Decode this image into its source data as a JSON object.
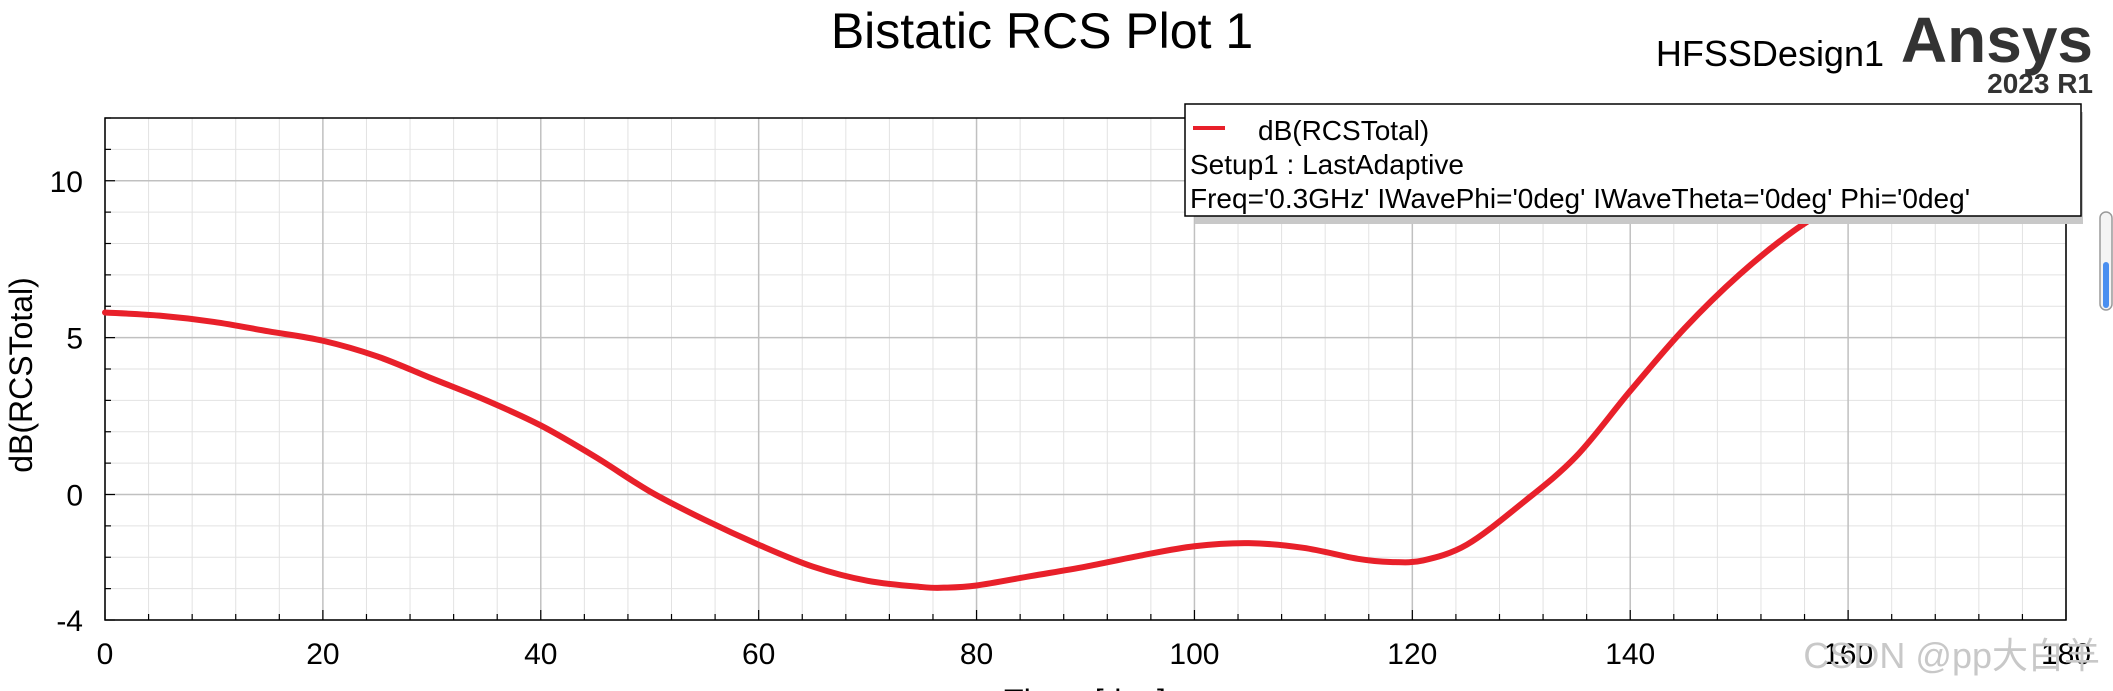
{
  "header": {
    "design_name": "HFSSDesign1",
    "brand": "Ansys",
    "version": "2023 R1"
  },
  "watermark": "CSDN @pp大白羊",
  "colors": {
    "series": "#e8202a",
    "grid_major": "#c0c0c0",
    "grid_minor": "#e2e2e2"
  },
  "chart_data": {
    "type": "line",
    "title": "Bistatic RCS Plot 1",
    "xlabel": "Theta [deg]",
    "ylabel": "dB(RCSTotal)",
    "xlim": [
      0,
      180
    ],
    "ylim": [
      -4,
      12
    ],
    "xticks": [
      "0",
      "20",
      "40",
      "60",
      "80",
      "100",
      "120",
      "140",
      "160",
      "180"
    ],
    "yticks": [
      "-4",
      "0",
      "5",
      "10"
    ],
    "grid": true,
    "legend": {
      "placement": "top-right",
      "entry": "dB(RCSTotal)",
      "lines": [
        "Setup1 : LastAdaptive",
        "Freq='0.3GHz' IWavePhi='0deg' IWaveTheta='0deg' Phi='0deg'"
      ]
    },
    "series": [
      {
        "name": "dB(RCSTotal)",
        "x": [
          0,
          5,
          10,
          15,
          20,
          25,
          30,
          35,
          40,
          45,
          50,
          55,
          60,
          65,
          70,
          75,
          77,
          80,
          85,
          90,
          95,
          100,
          105,
          110,
          115,
          118,
          121,
          125,
          130,
          135,
          140,
          145,
          150,
          155,
          160
        ],
        "y": [
          5.8,
          5.7,
          5.5,
          5.2,
          4.9,
          4.4,
          3.7,
          3.0,
          2.2,
          1.2,
          0.1,
          -0.8,
          -1.6,
          -2.3,
          -2.75,
          -2.95,
          -2.97,
          -2.9,
          -2.6,
          -2.3,
          -1.95,
          -1.65,
          -1.55,
          -1.7,
          -2.05,
          -2.15,
          -2.1,
          -1.6,
          -0.3,
          1.2,
          3.3,
          5.3,
          7.0,
          8.4,
          9.5
        ]
      }
    ]
  }
}
